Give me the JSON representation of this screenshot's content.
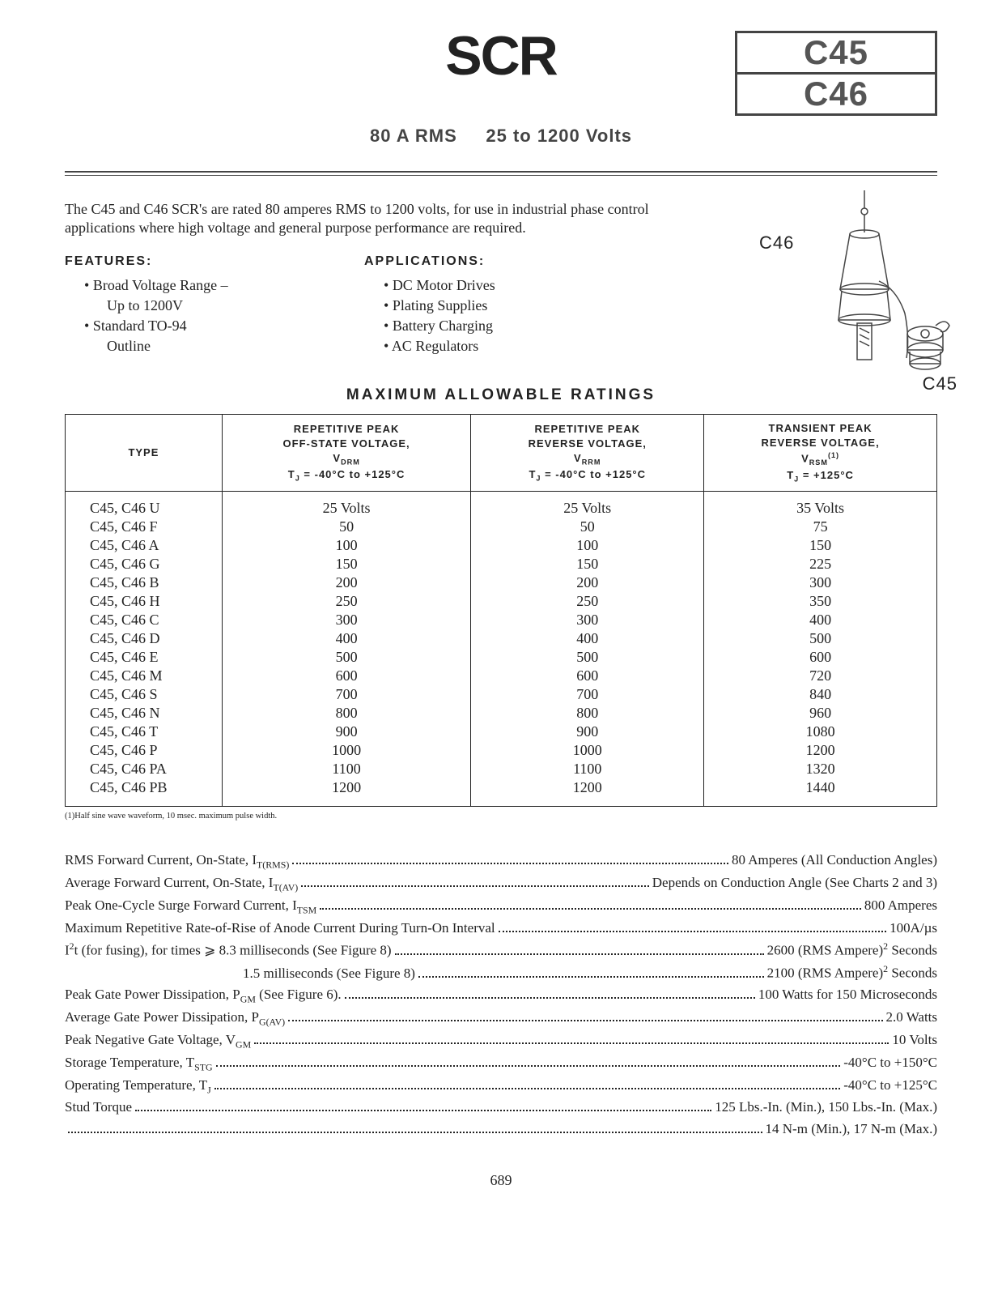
{
  "header": {
    "main_title": "SCR",
    "part_top": "C45",
    "part_bottom": "C46",
    "subtitle_left": "80 A RMS",
    "subtitle_right": "25 to 1200 Volts"
  },
  "intro": "The C45 and C46 SCR's are rated 80 amperes RMS to 1200 volts, for use in industrial phase control applications where high voltage and general purpose performance are required.",
  "features_head": "FEATURES:",
  "features": [
    {
      "text": "Broad Voltage Range –",
      "sub": false
    },
    {
      "text": "Up to 1200V",
      "sub": true
    },
    {
      "text": "Standard TO-94",
      "sub": false
    },
    {
      "text": "Outline",
      "sub": true
    }
  ],
  "apps_head": "APPLICATIONS:",
  "applications": [
    {
      "text": "DC Motor Drives"
    },
    {
      "text": "Plating Supplies"
    },
    {
      "text": "Battery Charging"
    },
    {
      "text": "AC Regulators"
    }
  ],
  "diagram": {
    "c46": "C46",
    "c45": "C45"
  },
  "ratings_title": "MAXIMUM ALLOWABLE RATINGS",
  "table": {
    "col1_header": "TYPE",
    "col2_header": "REPETITIVE PEAK<br>OFF-STATE VOLTAGE,<br>V<sub>DRM</sub><br>T<sub>J</sub> = -40°C to +125°C",
    "col3_header": "REPETITIVE PEAK<br>REVERSE VOLTAGE,<br>V<sub>RRM</sub><br>T<sub>J</sub> = -40°C to +125°C",
    "col4_header": "TRANSIENT PEAK<br>REVERSE VOLTAGE,<br>V<sub>RSM</sub><sup>(1)</sup><br>T<sub>J</sub> = +125°C",
    "rows": [
      [
        "C45, C46 U",
        "25 Volts",
        "25 Volts",
        "35 Volts"
      ],
      [
        "C45, C46 F",
        "50",
        "50",
        "75"
      ],
      [
        "C45, C46 A",
        "100",
        "100",
        "150"
      ],
      [
        "C45, C46 G",
        "150",
        "150",
        "225"
      ],
      [
        "C45, C46 B",
        "200",
        "200",
        "300"
      ],
      [
        "C45, C46 H",
        "250",
        "250",
        "350"
      ],
      [
        "C45, C46 C",
        "300",
        "300",
        "400"
      ],
      [
        "C45, C46 D",
        "400",
        "400",
        "500"
      ],
      [
        "C45, C46 E",
        "500",
        "500",
        "600"
      ],
      [
        "C45, C46 M",
        "600",
        "600",
        "720"
      ],
      [
        "C45, C46 S",
        "700",
        "700",
        "840"
      ],
      [
        "C45, C46 N",
        "800",
        "800",
        "960"
      ],
      [
        "C45, C46 T",
        "900",
        "900",
        "1080"
      ],
      [
        "C45, C46 P",
        "1000",
        "1000",
        "1200"
      ],
      [
        "C45, C46 PA",
        "1100",
        "1100",
        "1320"
      ],
      [
        "C45, C46 PB",
        "1200",
        "1200",
        "1440"
      ]
    ]
  },
  "footnote": "(1)Half sine wave waveform, 10 msec. maximum pulse width.",
  "specs": [
    {
      "label": "RMS Forward Current, On-State, I<sub>T(RMS)</sub>",
      "val": "80 Amperes (All Conduction Angles)",
      "indent": false
    },
    {
      "label": "Average Forward Current, On-State, I<sub>T(AV)</sub>",
      "val": "Depends on Conduction Angle (See Charts 2 and 3)",
      "indent": false
    },
    {
      "label": "Peak One-Cycle Surge Forward Current, I<sub>TSM</sub>",
      "val": "800 Amperes",
      "indent": false
    },
    {
      "label": "Maximum Repetitive Rate-of-Rise of Anode Current During Turn-On Interval",
      "val": "100A/µs",
      "indent": false
    },
    {
      "label": "I<sup>2</sup>t (for fusing), for times ⩾ 8.3 milliseconds (See Figure 8)",
      "val": "2600 (RMS Ampere)<sup>2</sup> Seconds",
      "indent": false
    },
    {
      "label": "1.5 milliseconds (See Figure 8)",
      "val": "2100 (RMS Ampere)<sup>2</sup> Seconds",
      "indent": true
    },
    {
      "label": "Peak Gate Power Dissipation, P<sub>GM</sub> (See Figure 6).",
      "val": "100 Watts for 150 Microseconds",
      "indent": false
    },
    {
      "label": "Average Gate Power Dissipation, P<sub>G(AV)</sub>",
      "val": "2.0 Watts",
      "indent": false
    },
    {
      "label": "Peak Negative Gate Voltage, V<sub>GM</sub>",
      "val": "10 Volts",
      "indent": false
    },
    {
      "label": "Storage Temperature, T<sub>STG</sub>",
      "val": "-40°C to +150°C",
      "indent": false
    },
    {
      "label": "Operating Temperature, T<sub>J</sub>",
      "val": "-40°C to +125°C",
      "indent": false
    },
    {
      "label": "Stud Torque",
      "val": "125 Lbs.-In. (Min.), 150 Lbs.-In. (Max.)",
      "indent": false
    },
    {
      "label": "",
      "val": "14 N-m (Min.), 17 N-m (Max.)",
      "indent": false
    }
  ],
  "pagenum": "689"
}
